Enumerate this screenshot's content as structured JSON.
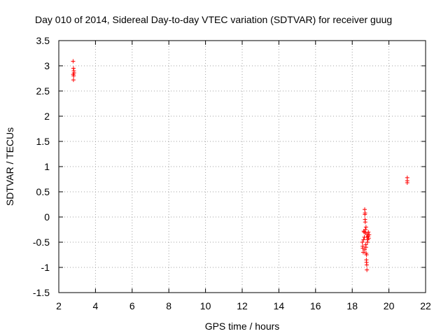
{
  "chart_data": {
    "type": "scatter",
    "title": "Day 010 of 2014, Sidereal Day-to-day VTEC variation (SDTVAR) for receiver guug",
    "xlabel": "GPS time / hours",
    "ylabel": "SDTVAR / TECUs",
    "xlim": [
      2,
      22
    ],
    "ylim": [
      -1.5,
      3.5
    ],
    "xticks": [
      2,
      4,
      6,
      8,
      10,
      12,
      14,
      16,
      18,
      20,
      22
    ],
    "yticks": [
      -1.5,
      -1,
      -0.5,
      0,
      0.5,
      1,
      1.5,
      2,
      2.5,
      3,
      3.5
    ],
    "xtick_labels": [
      "2",
      "4",
      "6",
      "8",
      "10",
      "12",
      "14",
      "16",
      "18",
      "20",
      "22"
    ],
    "ytick_labels": [
      "-1.5",
      "-1",
      "-0.5",
      "0",
      "0.5",
      "1",
      "1.5",
      "2",
      "2.5",
      "3",
      "3.5"
    ],
    "grid": true,
    "marker": "plus",
    "series": [
      {
        "name": "SDTVAR",
        "color": "#ff0000",
        "points": [
          [
            2.78,
            3.09
          ],
          [
            2.8,
            2.95
          ],
          [
            2.82,
            2.9
          ],
          [
            2.79,
            2.83
          ],
          [
            2.81,
            2.8
          ],
          [
            2.83,
            2.86
          ],
          [
            2.8,
            2.72
          ],
          [
            18.55,
            -0.5
          ],
          [
            18.57,
            -0.58
          ],
          [
            18.58,
            -0.62
          ],
          [
            18.6,
            -0.7
          ],
          [
            18.62,
            -0.45
          ],
          [
            18.63,
            -0.28
          ],
          [
            18.65,
            -0.3
          ],
          [
            18.66,
            -0.4
          ],
          [
            18.68,
            0.15
          ],
          [
            18.69,
            0.05
          ],
          [
            18.7,
            0.08
          ],
          [
            18.7,
            -0.05
          ],
          [
            18.71,
            -0.1
          ],
          [
            18.72,
            -0.25
          ],
          [
            18.73,
            -0.32
          ],
          [
            18.74,
            -0.55
          ],
          [
            18.75,
            -0.6
          ],
          [
            18.76,
            -0.72
          ],
          [
            18.77,
            -0.85
          ],
          [
            18.78,
            -0.9
          ],
          [
            18.79,
            -0.95
          ],
          [
            18.8,
            -1.05
          ],
          [
            18.8,
            -0.4
          ],
          [
            18.82,
            -0.35
          ],
          [
            18.83,
            -0.5
          ],
          [
            18.85,
            -0.45
          ],
          [
            18.87,
            -0.38
          ],
          [
            18.88,
            -0.3
          ],
          [
            18.9,
            -0.42
          ],
          [
            18.92,
            -0.35
          ],
          [
            18.75,
            -0.2
          ],
          [
            18.78,
            -0.75
          ],
          [
            18.68,
            -0.65
          ],
          [
            21.0,
            0.78
          ],
          [
            21.0,
            0.72
          ],
          [
            21.0,
            0.68
          ]
        ]
      }
    ]
  }
}
